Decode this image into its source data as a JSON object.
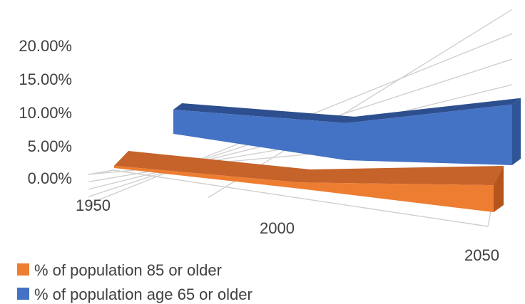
{
  "chart_data": {
    "type": "area",
    "subtype": "3d-area",
    "categories": [
      "1950",
      "2000",
      "2050"
    ],
    "series": [
      {
        "name": "% of population age 65 or older",
        "values": [
          0.081,
          0.124,
          0.203
        ],
        "color": "#4472c4",
        "shade_color": "#2f5597",
        "top_color": "#2e4f8f"
      },
      {
        "name": "% of population 85 or older",
        "values": [
          0.004,
          0.011,
          0.048
        ],
        "color": "#ed7d31",
        "shade_color": "#b5541b",
        "top_color": "#c5632a"
      }
    ],
    "y_ticks": [
      "0.00%",
      "5.00%",
      "10.00%",
      "15.00%",
      "20.00%"
    ],
    "ylim": [
      0,
      0.25
    ],
    "grid": true,
    "legend_position": "bottom-left"
  }
}
